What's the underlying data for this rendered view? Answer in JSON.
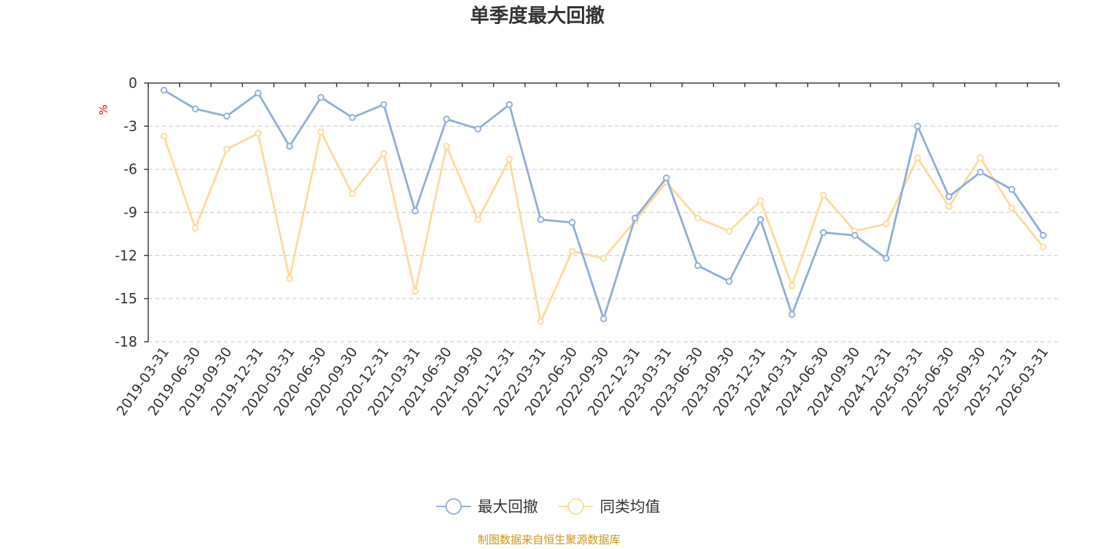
{
  "chart_data": {
    "type": "line",
    "title": "单季度最大回撤",
    "ylabel": "%",
    "ylim": [
      -18,
      0
    ],
    "yticks": [
      0,
      -3,
      -6,
      -9,
      -12,
      -15,
      -18
    ],
    "categories": [
      "2019-03-31",
      "2019-06-30",
      "2019-09-30",
      "2019-12-31",
      "2020-03-31",
      "2020-06-30",
      "2020-09-30",
      "2020-12-31",
      "2021-03-31",
      "2021-06-30",
      "2021-09-30",
      "2021-12-31",
      "2022-03-31",
      "2022-06-30",
      "2022-09-30",
      "2022-12-31",
      "2023-03-31",
      "2023-06-30",
      "2023-09-30",
      "2023-12-31",
      "2024-03-31",
      "2024-06-30",
      "2024-09-30",
      "2024-12-31",
      "2025-03-31",
      "2025-06-30",
      "2025-09-30",
      "2025-12-31",
      "2026-03-31"
    ],
    "series": [
      {
        "name": "最大回撤",
        "color": "#8eaedb",
        "values": [
          -0.5,
          -1.8,
          -2.3,
          -0.7,
          -4.4,
          -1.0,
          -2.4,
          -1.5,
          -8.9,
          -2.5,
          -3.2,
          -1.5,
          -9.5,
          -9.7,
          -16.4,
          -9.4,
          -6.6,
          -12.7,
          -13.8,
          -9.5,
          -16.1,
          -10.4,
          -10.6,
          -12.2,
          -3.0,
          -7.9,
          -6.2,
          -7.4,
          -10.6
        ]
      },
      {
        "name": "同类均值",
        "color": "#fdd99b",
        "values": [
          -3.7,
          -10.1,
          -4.6,
          -3.5,
          -13.6,
          -3.4,
          -7.7,
          -4.9,
          -14.5,
          -4.4,
          -9.5,
          -5.3,
          -16.6,
          -11.7,
          -12.2,
          -9.6,
          -6.9,
          -9.4,
          -10.3,
          -8.2,
          -14.1,
          -7.8,
          -10.3,
          -9.8,
          -5.2,
          -8.6,
          -5.2,
          -8.7,
          -11.4
        ]
      }
    ],
    "legend_position": "bottom-center",
    "grid": "dashed-horizontal"
  },
  "source_note": "制图数据来自恒生聚源数据库",
  "colors": {
    "axis": "#333333",
    "grid": "#cccccc",
    "unit": "#ff0000",
    "source": "#c8961e"
  }
}
